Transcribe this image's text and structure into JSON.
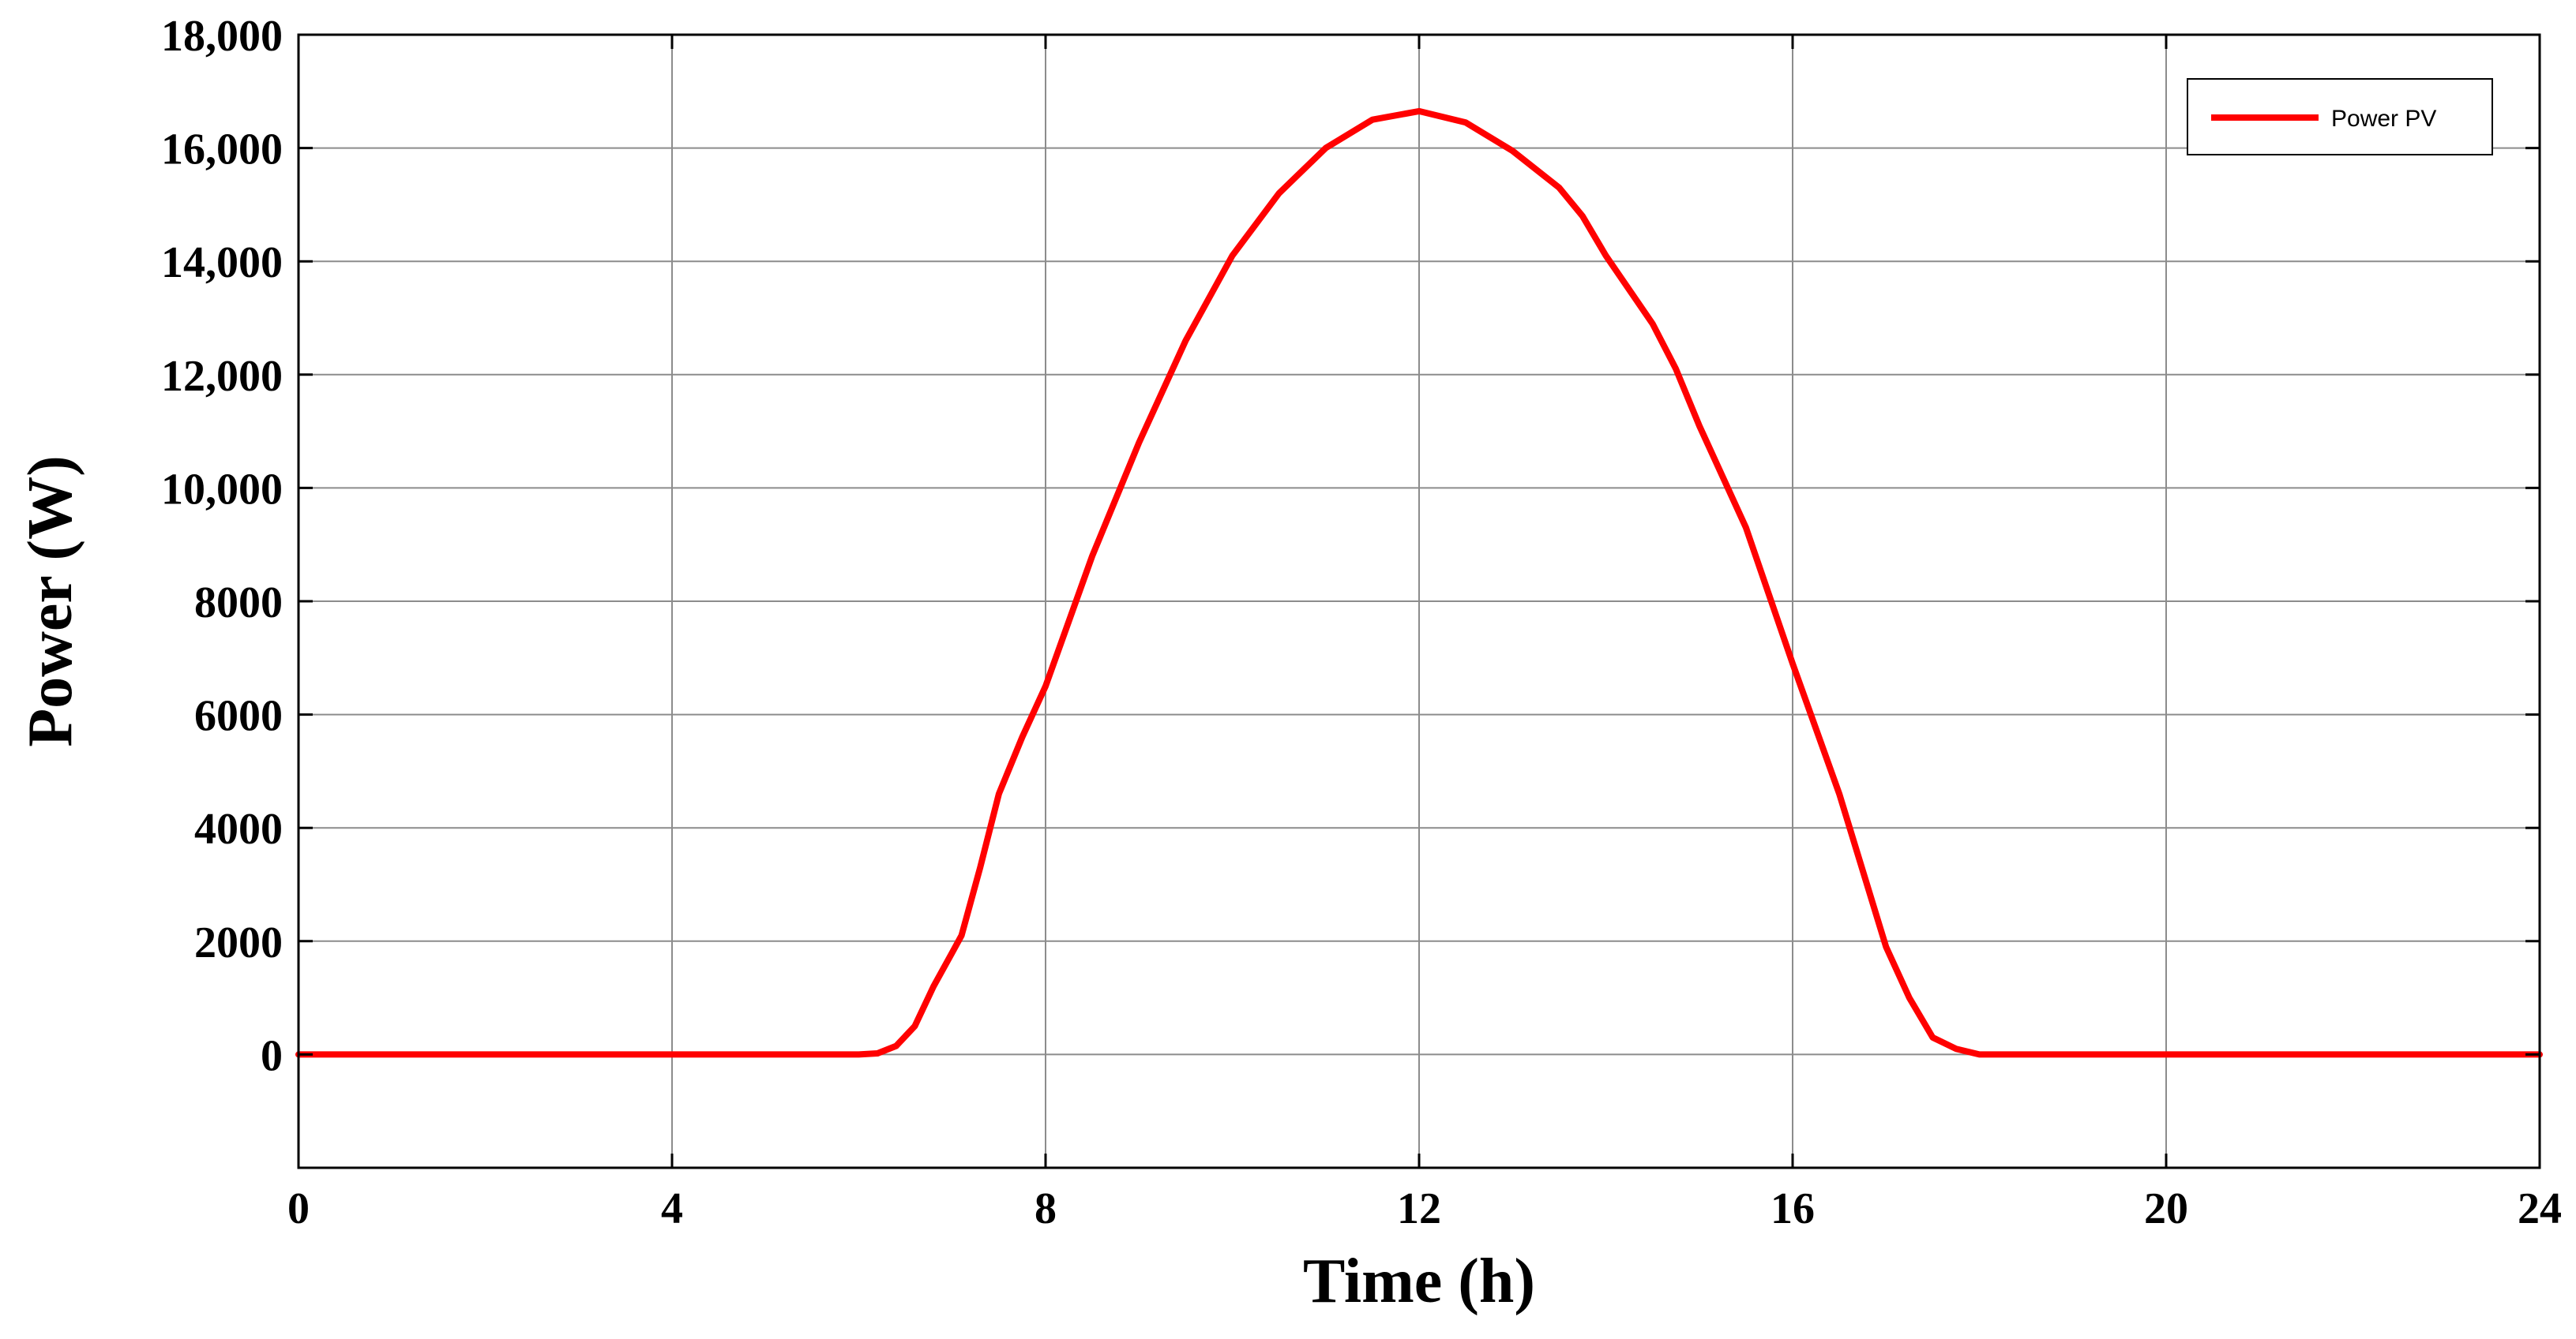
{
  "chart_data": {
    "type": "line",
    "xlabel": "Time (h)",
    "ylabel": "Power (W)",
    "xlim": [
      0,
      24
    ],
    "ylim": [
      -2000,
      18000
    ],
    "xticks": [
      0,
      4,
      8,
      12,
      16,
      20,
      24
    ],
    "xtick_labels": [
      "0",
      "4",
      "8",
      "12",
      "16",
      "20",
      "24"
    ],
    "yticks": [
      0,
      2000,
      4000,
      6000,
      8000,
      10000,
      12000,
      14000,
      16000,
      18000
    ],
    "ytick_labels": [
      "0",
      "2000",
      "4000",
      "6000",
      "8000",
      "10,000",
      "12,000",
      "14,000",
      "16,000",
      "18,000"
    ],
    "grid": true,
    "legend_position": "top-right",
    "series": [
      {
        "name": "Power PV",
        "color": "#ff0000",
        "x": [
          0,
          4,
          6.0,
          6.2,
          6.4,
          6.6,
          6.8,
          7.0,
          7.1,
          7.3,
          7.5,
          7.75,
          8.0,
          8.5,
          9.0,
          9.5,
          10.0,
          10.5,
          11.0,
          11.5,
          12.0,
          12.5,
          13.0,
          13.5,
          13.75,
          14.0,
          14.5,
          14.75,
          15.0,
          15.5,
          16.0,
          16.5,
          17.0,
          17.25,
          17.5,
          17.75,
          18.0,
          20,
          24
        ],
        "y": [
          0,
          0,
          0,
          20,
          150,
          500,
          1200,
          1800,
          2100,
          3300,
          4600,
          5600,
          6500,
          8800,
          10800,
          12600,
          14100,
          15200,
          16000,
          16500,
          16650,
          16450,
          15950,
          15300,
          14800,
          14100,
          12900,
          12100,
          11100,
          9300,
          6900,
          4600,
          1900,
          1000,
          300,
          100,
          0,
          0,
          0
        ]
      }
    ]
  }
}
